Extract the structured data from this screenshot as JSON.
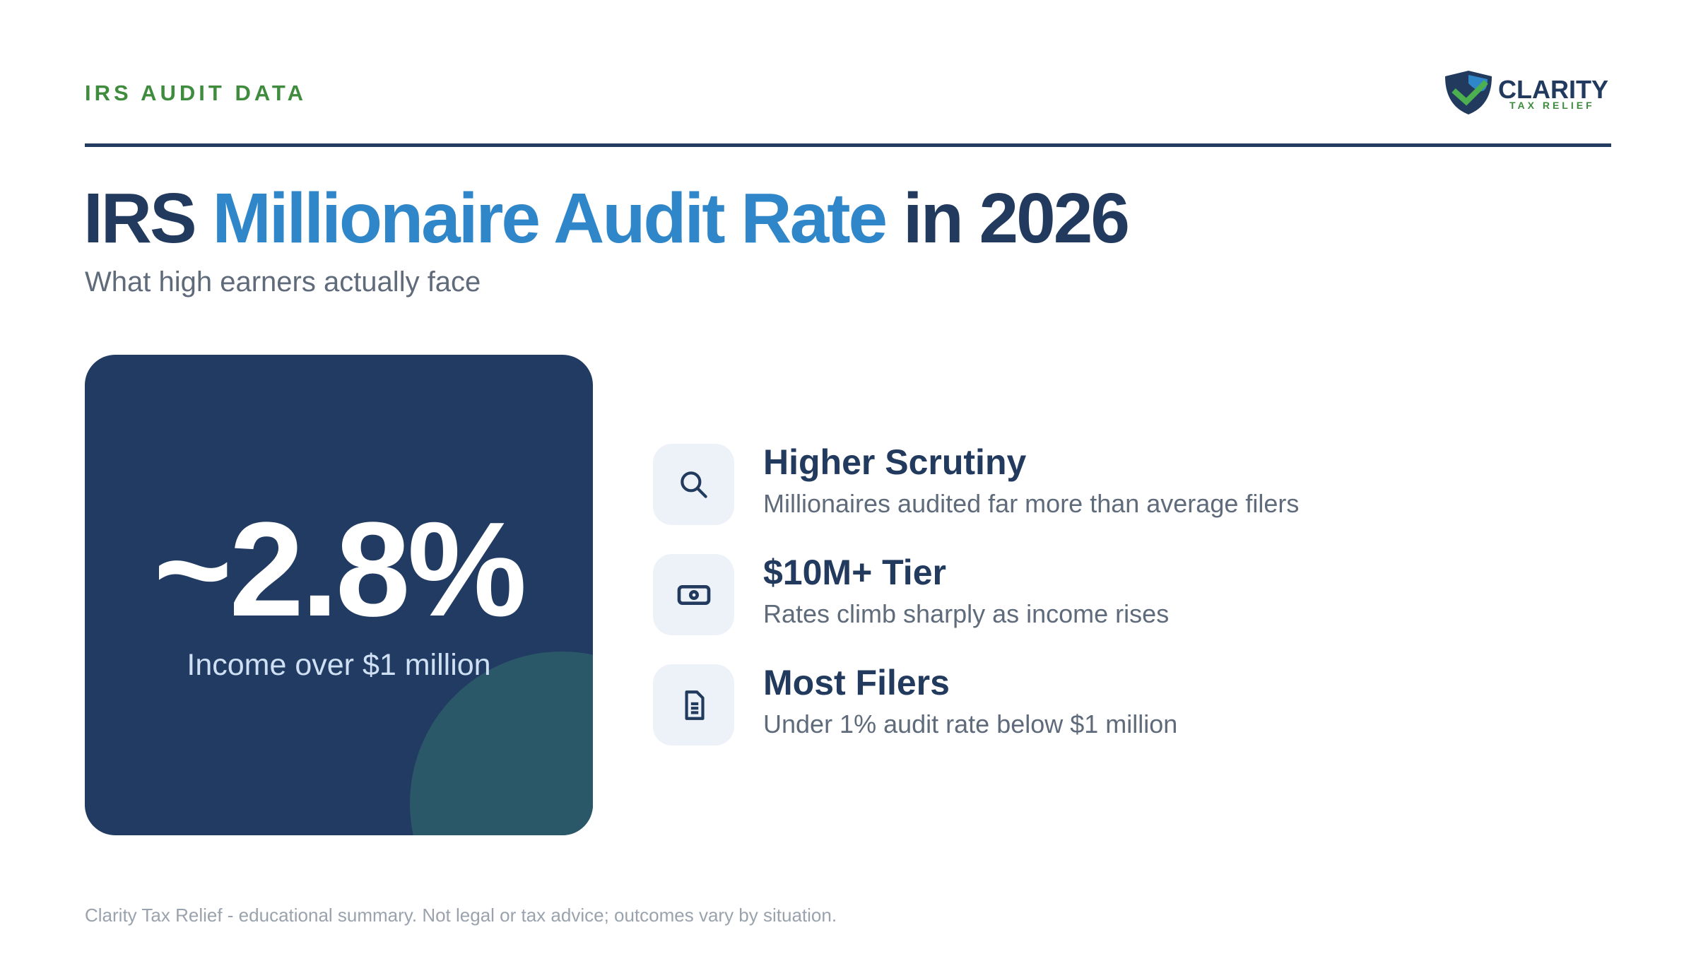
{
  "header": {
    "eyebrow": "IRS AUDIT DATA",
    "logo": {
      "name": "CLARITY",
      "tagline": "TAX RELIEF"
    }
  },
  "title": {
    "part1": "IRS",
    "highlight": "Millionaire Audit Rate",
    "part2": "in 2026"
  },
  "subtitle": "What high earners actually face",
  "stat": {
    "value": "~2.8%",
    "label": "Income over $1 million"
  },
  "items": [
    {
      "title": "Higher Scrutiny",
      "description": "Millionaires audited far more than average filers"
    },
    {
      "title": "$10M+ Tier",
      "description": "Rates climb sharply as income rises"
    },
    {
      "title": "Most Filers",
      "description": "Under 1% audit rate below $1 million"
    }
  ],
  "footer": "Clarity Tax Relief - educational summary. Not legal or tax advice; outcomes vary by situation."
}
